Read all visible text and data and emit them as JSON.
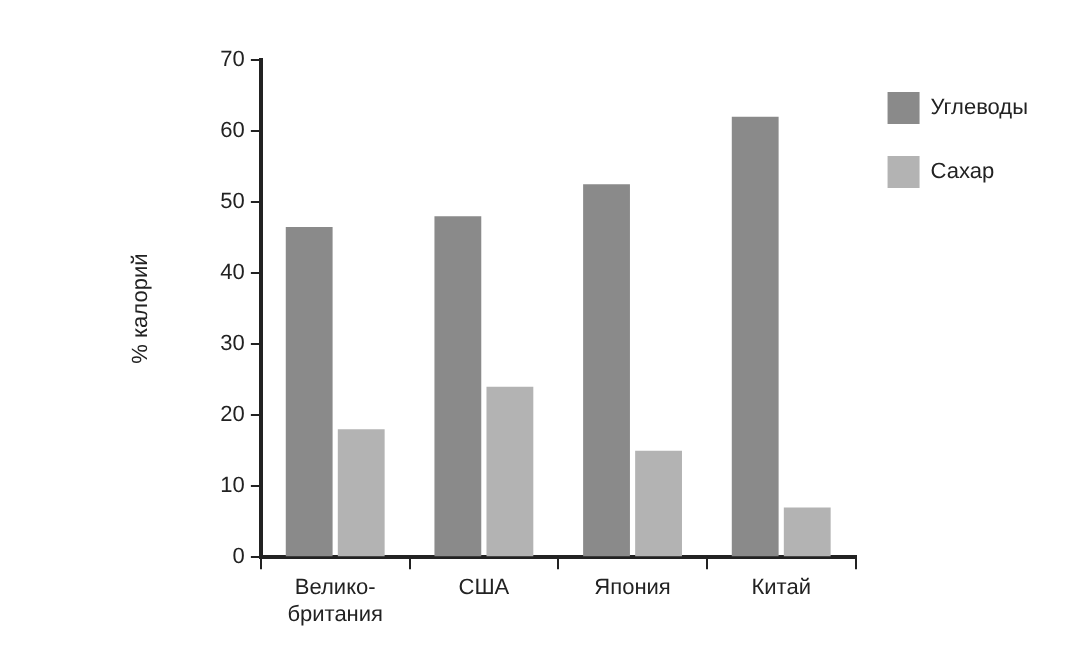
{
  "chart_data": {
    "type": "bar",
    "ylabel": "% калорий",
    "categories": [
      "Велико-\nбритания",
      "США",
      "Япония",
      "Китай"
    ],
    "series": [
      {
        "name": "Углеводы",
        "color": "#8a8a8a",
        "values": [
          46.5,
          48,
          52.5,
          62
        ]
      },
      {
        "name": "Сахар",
        "color": "#b3b3b3",
        "values": [
          18,
          24,
          15,
          7
        ]
      }
    ],
    "ylim": [
      0,
      70
    ],
    "yticks": [
      0,
      10,
      20,
      30,
      40,
      50,
      60,
      70
    ],
    "grid": false,
    "legend": "top right"
  }
}
